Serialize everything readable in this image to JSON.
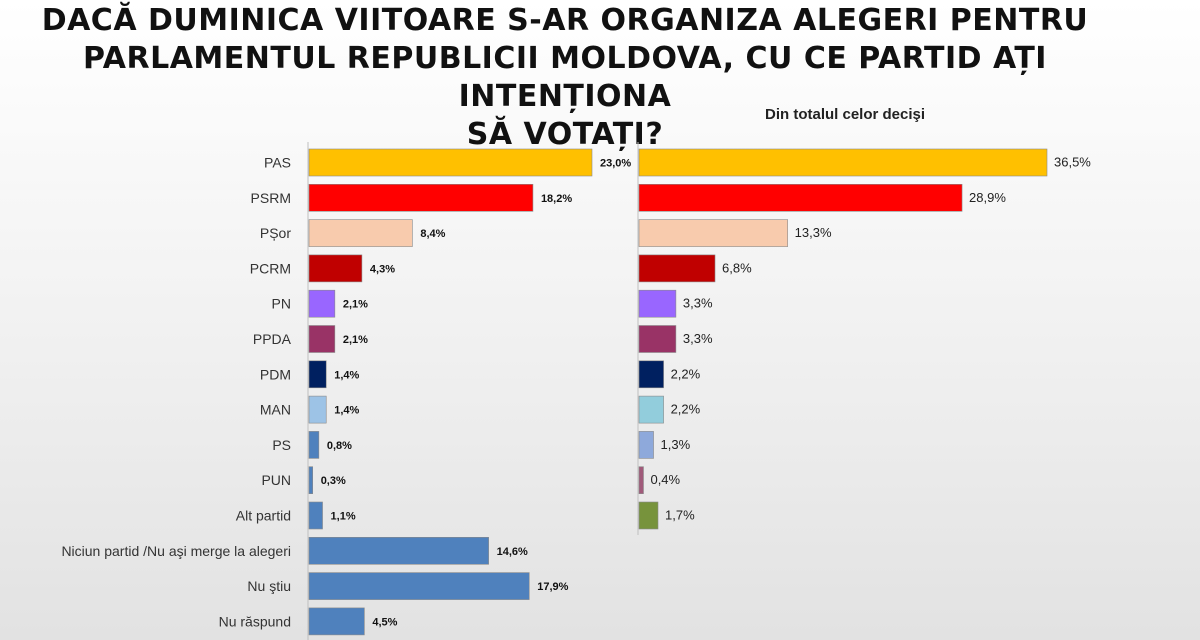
{
  "title_lines": [
    "DACĂ DUMINICA VIITOARE S-AR ORGANIZA ALEGERI PENTRU",
    "PARLAMENTUL REPUBLICII MOLDOVA, CU CE PARTID AȚI INTENȚIONA",
    "SĂ VOTAȚI?"
  ],
  "chart_data": [
    {
      "type": "bar",
      "orientation": "horizontal",
      "categories": [
        "PAS",
        "PSRM",
        "PȘor",
        "PCRM",
        "PN",
        "PPDA",
        "PDM",
        "MAN",
        "PS",
        "PUN",
        "Alt partid",
        "Niciun partid /Nu aşi merge la alegeri",
        "Nu ştiu",
        "Nu răspund"
      ],
      "values": [
        23.0,
        18.2,
        8.4,
        4.3,
        2.1,
        2.1,
        1.4,
        1.4,
        0.8,
        0.3,
        1.1,
        14.6,
        17.9,
        4.5
      ],
      "data_labels": [
        "23,0%",
        "18,2%",
        "8,4%",
        "4,3%",
        "2,1%",
        "2,1%",
        "1,4%",
        "1,4%",
        "0,8%",
        "0,3%",
        "1,1%",
        "14,6%",
        "17,9%",
        "4,5%"
      ],
      "colors": [
        "#FFC000",
        "#FF0000",
        "#F8CBAD",
        "#C00000",
        "#9966FF",
        "#993366",
        "#002060",
        "#9DC3E6",
        "#4F81BD",
        "#4F81BD",
        "#4F81BD",
        "#4F81BD",
        "#4F81BD",
        "#4F81BD"
      ],
      "xlim": [
        0,
        23
      ]
    },
    {
      "type": "bar",
      "orientation": "horizontal",
      "title": "Din totalul celor decişi",
      "categories": [
        "PAS",
        "PSRM",
        "PȘor",
        "PCRM",
        "PN",
        "PPDA",
        "PDM",
        "MAN",
        "PS",
        "PUN",
        "Alt partid"
      ],
      "values": [
        36.5,
        28.9,
        13.3,
        6.8,
        3.3,
        3.3,
        2.2,
        2.2,
        1.3,
        0.4,
        1.7
      ],
      "data_labels": [
        "36,5%",
        "28,9%",
        "13,3%",
        "6,8%",
        "3,3%",
        "3,3%",
        "2,2%",
        "2,2%",
        "1,3%",
        "0,4%",
        "1,7%"
      ],
      "colors": [
        "#FFC000",
        "#FF0000",
        "#F8CBAD",
        "#C00000",
        "#9966FF",
        "#993366",
        "#002060",
        "#92CDDC",
        "#8EA9DB",
        "#A05A7A",
        "#77933C"
      ],
      "xlim": [
        0,
        36.5
      ]
    }
  ]
}
